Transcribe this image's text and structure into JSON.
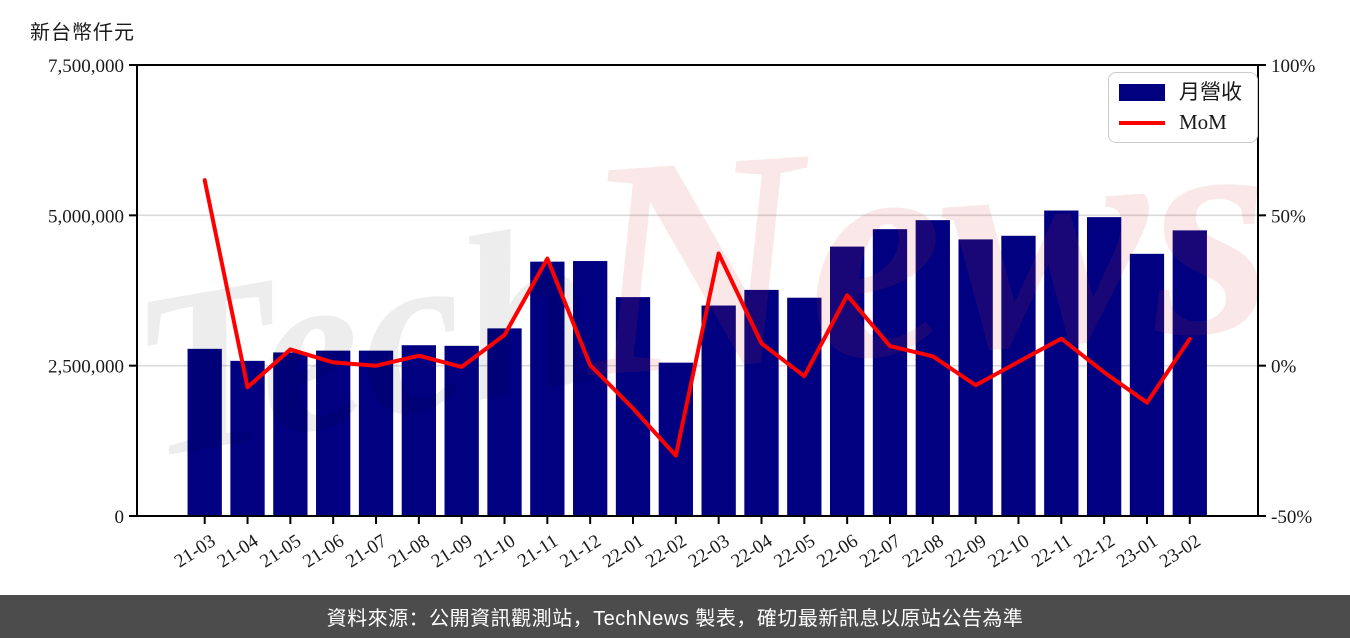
{
  "page": {
    "unit_label": "新台幣仟元",
    "footer_text": "資料來源：公開資訊觀測站，TechNews 製表，確切最新訊息以原站公告為準"
  },
  "legend": {
    "revenue_label": "月營收",
    "mom_label": "MoM"
  },
  "watermark": {
    "part1": "Tech",
    "part2": "News"
  },
  "colors": {
    "bar": "#000080",
    "line": "#ff0000",
    "grid": "#d9d9d9",
    "axis": "#000000",
    "tick_text": "#1a1a1a",
    "footer_bg": "#4c4c4c",
    "watermark_gray": "rgba(0,0,0,0.07)",
    "watermark_pink": "rgba(214,60,60,0.12)"
  },
  "chart_data": {
    "type": "bar",
    "title": "",
    "categories": [
      "21-03",
      "21-04",
      "21-05",
      "21-06",
      "21-07",
      "21-08",
      "21-09",
      "21-10",
      "21-11",
      "21-12",
      "22-01",
      "22-02",
      "22-03",
      "22-04",
      "22-05",
      "22-06",
      "22-07",
      "22-08",
      "22-09",
      "22-10",
      "22-11",
      "22-12",
      "23-01",
      "23-02"
    ],
    "series": [
      {
        "name": "月營收",
        "type": "bar",
        "axis": "left",
        "unit": "新台幣仟元",
        "values": [
          2780000,
          2580000,
          2720000,
          2750000,
          2750000,
          2840000,
          2830000,
          3120000,
          4230000,
          4240000,
          3640000,
          2550000,
          3500000,
          3760000,
          3630000,
          4480000,
          4770000,
          4920000,
          4600000,
          4660000,
          5080000,
          4970000,
          4360000,
          4750000
        ]
      },
      {
        "name": "MoM",
        "type": "line",
        "axis": "right",
        "unit": "%",
        "values": [
          61.7,
          -7.2,
          5.4,
          1.1,
          0.0,
          3.3,
          -0.4,
          10.2,
          35.6,
          0.2,
          -14.2,
          -29.9,
          37.3,
          7.4,
          -3.5,
          23.4,
          6.5,
          3.1,
          -6.5,
          1.3,
          9.0,
          -2.2,
          -12.3,
          8.9
        ]
      }
    ],
    "y_left": {
      "label": "新台幣仟元",
      "ticks": [
        0,
        2500000,
        5000000,
        7500000
      ],
      "range": [
        0,
        7500000
      ]
    },
    "y_right": {
      "label": "%",
      "ticks": [
        -50,
        0,
        50,
        100
      ],
      "range": [
        -50,
        100
      ],
      "tick_suffix": "%"
    },
    "legend_position": "upper right",
    "grid": "horizontal"
  }
}
